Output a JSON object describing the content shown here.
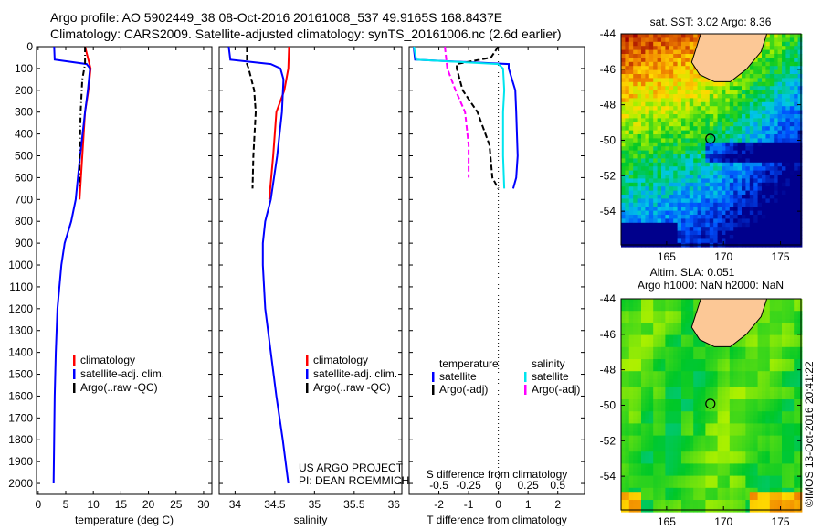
{
  "title_line1": "Argo profile: AO 5902449_38 08-Oct-2016 20161008_537 49.9165S 168.8437E",
  "title_line2": "Climatology: CARS2009. Satellite-adjusted climatology: synTS_20161006.nc (2.6d earlier)",
  "credit": "©IMOS 13-Oct-2016 20:41:22",
  "colors": {
    "climatology": "#ff0000",
    "satellite": "#0000ff",
    "argo": "#000000",
    "s_satellite": "#00e5ee",
    "s_argo": "#ff00ff",
    "land": "#fcc896"
  },
  "chart_data": [
    {
      "type": "line",
      "name": "temperature-profile",
      "xlabel": "temperature (deg C)",
      "ylabel": "",
      "xlim": [
        -0.3,
        31.5
      ],
      "ylim": [
        2050,
        0
      ],
      "xticks": [
        0,
        5,
        10,
        15,
        20,
        25,
        30
      ],
      "yticks": [
        0,
        100,
        200,
        300,
        400,
        500,
        600,
        700,
        800,
        900,
        1000,
        1100,
        1200,
        1300,
        1400,
        1500,
        1600,
        1700,
        1800,
        1900,
        2000
      ],
      "legend": [
        "climatology",
        "satellite-adj. clim.",
        "Argo(..raw -QC)"
      ],
      "legend_placement": "bottom-center",
      "series": [
        {
          "name": "climatology",
          "color": "#ff0000",
          "style": "solid",
          "depth": [
            0,
            100,
            200,
            300,
            500,
            700
          ],
          "values": [
            8.5,
            9.5,
            9.1,
            8.5,
            8.0,
            7.5
          ]
        },
        {
          "name": "satellite-adj. clim.",
          "color": "#0000ff",
          "style": "solid",
          "depth": [
            0,
            60,
            80,
            100,
            200,
            300,
            500,
            700,
            800,
            900,
            1000,
            1200,
            1400,
            1600,
            1800,
            2000
          ],
          "values": [
            2.9,
            3.0,
            8.8,
            9.4,
            9.0,
            8.5,
            7.6,
            6.8,
            6.0,
            4.8,
            4.2,
            3.5,
            3.2,
            3.0,
            2.9,
            2.8
          ]
        },
        {
          "name": "Argo(..raw -QC)",
          "color": "#000000",
          "style": "dashdot",
          "depth": [
            0,
            80,
            150,
            300,
            500,
            650
          ],
          "values": [
            8.5,
            8.5,
            8.0,
            7.7,
            7.5,
            7.5
          ]
        }
      ]
    },
    {
      "type": "line",
      "name": "salinity-profile",
      "xlabel": "salinity",
      "xlim": [
        33.8,
        36.1
      ],
      "ylim": [
        2050,
        0
      ],
      "xticks": [
        34,
        34.5,
        35,
        35.5,
        36
      ],
      "legend": [
        "climatology",
        "satellite-adj. clim.",
        "Argo(..raw -QC)"
      ],
      "legend_placement": "bottom-center",
      "annotation": [
        "US ARGO PROJECT",
        "PI: DEAN ROEMMICH"
      ],
      "series": [
        {
          "name": "climatology",
          "color": "#ff0000",
          "style": "solid",
          "depth": [
            0,
            100,
            200,
            300,
            500,
            700
          ],
          "values": [
            34.68,
            34.67,
            34.62,
            34.52,
            34.48,
            34.43
          ]
        },
        {
          "name": "satellite-adj. clim.",
          "color": "#0000ff",
          "style": "solid",
          "depth": [
            0,
            60,
            80,
            100,
            150,
            300,
            500,
            700,
            800,
            900,
            1000,
            1200,
            1400,
            1600,
            1800,
            2000
          ],
          "values": [
            33.92,
            33.94,
            34.45,
            34.57,
            34.61,
            34.59,
            34.53,
            34.45,
            34.38,
            34.35,
            34.35,
            34.38,
            34.45,
            34.52,
            34.6,
            34.67
          ]
        },
        {
          "name": "Argo(..raw -QC)",
          "color": "#000000",
          "style": "dashed",
          "depth": [
            0,
            80,
            100,
            200,
            300,
            500,
            650
          ],
          "values": [
            34.15,
            34.15,
            34.17,
            34.24,
            34.26,
            34.23,
            34.22
          ]
        }
      ]
    },
    {
      "type": "line",
      "name": "difference-profile",
      "xlabel": "T difference from climatology",
      "xlabel_top": "S difference from climatology",
      "xlim": [
        -3,
        2.9
      ],
      "ylim": [
        2050,
        0
      ],
      "xticks": [
        -2,
        -1,
        0,
        1,
        2
      ],
      "s_xticks": [
        "-0.5",
        "-0.25",
        "0",
        "0.25",
        "0.5"
      ],
      "s_xtick_values": [
        -0.5,
        -0.25,
        0,
        0.25,
        0.5
      ],
      "legend_headers": [
        "temperature",
        "salinity"
      ],
      "legend": [
        "satellite",
        "Argo(-adj)",
        "satellite",
        "Argo(-adj)"
      ],
      "legend_placement": "top",
      "series": [
        {
          "name": "T satellite",
          "color": "#0000ff",
          "style": "solid",
          "axis": "T",
          "depth": [
            0,
            60,
            80,
            100,
            200,
            300,
            500,
            600,
            650
          ],
          "values": [
            -2.85,
            -2.8,
            0.35,
            0.35,
            0.57,
            0.6,
            0.65,
            0.6,
            0.5
          ]
        },
        {
          "name": "T Argo(-adj)",
          "color": "#000000",
          "style": "dashed",
          "axis": "T",
          "depth": [
            0,
            50,
            80,
            100,
            200,
            300,
            450,
            600,
            650
          ],
          "values": [
            0,
            -0.25,
            -1.4,
            -1.4,
            -1.2,
            -0.7,
            -0.3,
            -0.2,
            0
          ]
        },
        {
          "name": "S satellite",
          "color": "#00e5ee",
          "style": "solid",
          "axis": "S",
          "depth": [
            0,
            60,
            80,
            100,
            200,
            300,
            500,
            650
          ],
          "values": [
            -0.71,
            -0.69,
            0,
            0.04,
            0.05,
            0.04,
            0.04,
            0.05
          ]
        },
        {
          "name": "S Argo(-adj)",
          "color": "#ff00ff",
          "style": "dashed",
          "axis": "S",
          "depth": [
            0,
            100,
            200,
            300,
            450,
            600
          ],
          "values": [
            -0.45,
            -0.43,
            -0.36,
            -0.28,
            -0.25,
            -0.25
          ]
        }
      ]
    },
    {
      "type": "heatmap",
      "name": "sst-map",
      "title": "sat. SST: 3.02 Argo: 8.36",
      "xlim": [
        161,
        176.8
      ],
      "ylim": [
        -55.9,
        -44
      ],
      "xticks": [
        165,
        170,
        175
      ],
      "yticks": [
        -44,
        -46,
        -48,
        -50,
        -52,
        -54
      ],
      "float_position": [
        168.8437,
        -49.9165
      ]
    },
    {
      "type": "heatmap",
      "name": "sla-map",
      "title_line1": "Altim. SLA: 0.051",
      "title_line2": "Argo h1000: NaN h2000: NaN",
      "xlim": [
        161,
        176.8
      ],
      "ylim": [
        -55.9,
        -44
      ],
      "xticks": [
        165,
        170,
        175
      ],
      "yticks": [
        -44,
        -46,
        -48,
        -50,
        -52,
        -54
      ],
      "float_position": [
        168.8437,
        -49.9165
      ]
    }
  ]
}
